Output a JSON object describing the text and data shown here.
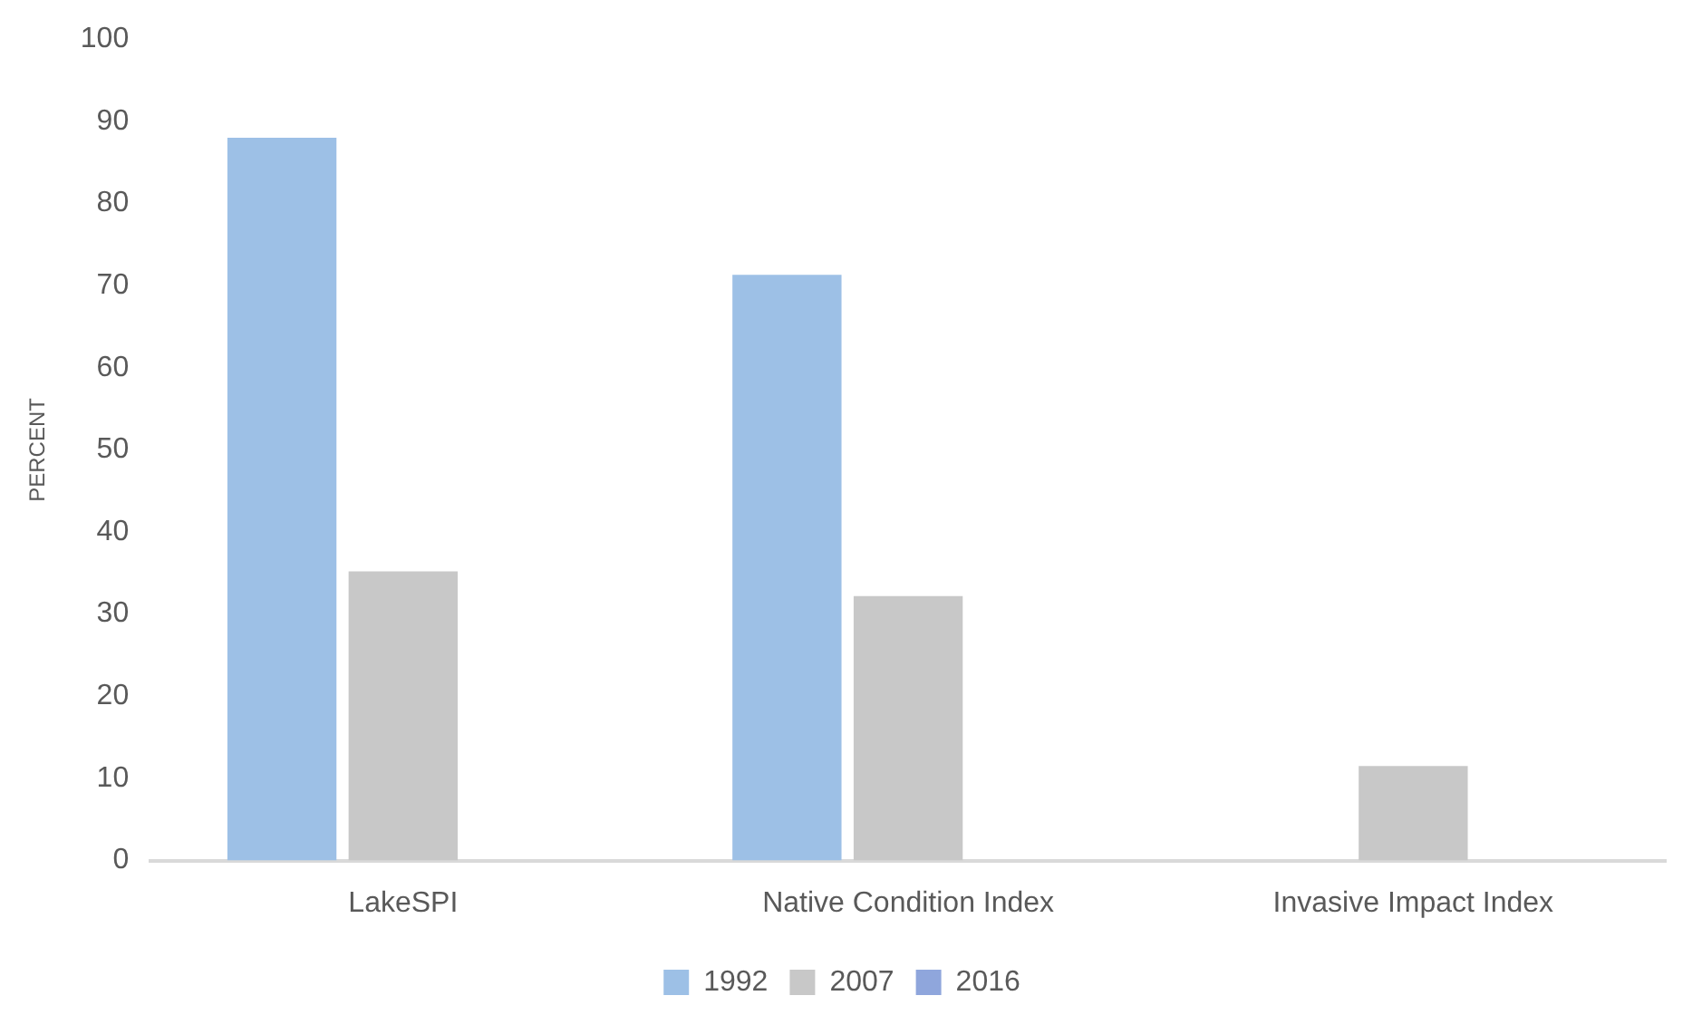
{
  "chart_data": {
    "type": "bar",
    "ylabel": "PERCENT",
    "categories": [
      "LakeSPI",
      "Native Condition Index",
      "Invasive Impact Index"
    ],
    "series": [
      {
        "name": "1992",
        "color": "#9dc0e6",
        "values": [
          88,
          71.3,
          null
        ]
      },
      {
        "name": "2007",
        "color": "#c8c8c8",
        "values": [
          35.2,
          32.2,
          11.5
        ]
      },
      {
        "name": "2016",
        "color": "#8fa6dc",
        "values": [
          null,
          null,
          null
        ]
      }
    ],
    "ylim": [
      0,
      100
    ],
    "yticks": [
      0,
      10,
      20,
      30,
      40,
      50,
      60,
      70,
      80,
      90,
      100
    ],
    "grid": false,
    "legend": "bottom"
  }
}
